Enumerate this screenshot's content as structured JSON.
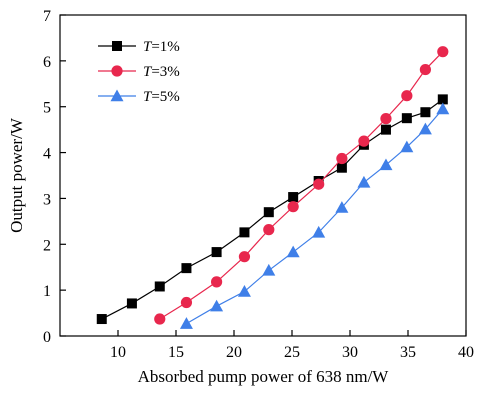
{
  "chart_data": {
    "type": "line",
    "xlabel": "Absorbed pump power of 638 nm/W",
    "ylabel": "Output power/W",
    "xlim": [
      5,
      40
    ],
    "ylim": [
      0,
      7
    ],
    "xticks": [
      10,
      15,
      20,
      25,
      30,
      35,
      40
    ],
    "yticks": [
      0,
      1,
      2,
      3,
      4,
      5,
      6,
      7
    ],
    "grid": false,
    "legend": "top-left",
    "series": [
      {
        "name": "T=1%",
        "name_italic": "T",
        "name_rest": "=1%",
        "color": "#000000",
        "marker": "square",
        "x": [
          8.6,
          11.2,
          13.6,
          15.9,
          18.5,
          20.9,
          23.0,
          25.1,
          27.3,
          29.3,
          31.2,
          33.1,
          34.9,
          36.5,
          38.0
        ],
        "y": [
          0.37,
          0.71,
          1.08,
          1.48,
          1.83,
          2.26,
          2.7,
          3.03,
          3.38,
          3.67,
          4.17,
          4.5,
          4.75,
          4.88,
          5.16
        ]
      },
      {
        "name": "T=3%",
        "name_italic": "T",
        "name_rest": "=3%",
        "color": "#e8274d",
        "marker": "circle",
        "x": [
          13.6,
          15.9,
          18.5,
          20.9,
          23.0,
          25.1,
          27.3,
          29.3,
          31.2,
          33.1,
          34.9,
          36.5,
          38.0
        ],
        "y": [
          0.37,
          0.73,
          1.18,
          1.73,
          2.32,
          2.82,
          3.31,
          3.87,
          4.25,
          4.74,
          5.24,
          5.81,
          6.2
        ]
      },
      {
        "name": "T=5%",
        "name_italic": "T",
        "name_rest": "=5%",
        "color": "#3f7fe8",
        "marker": "triangle",
        "x": [
          15.9,
          18.5,
          20.9,
          23.0,
          25.1,
          27.3,
          29.3,
          31.2,
          33.1,
          34.9,
          36.5,
          38.0
        ],
        "y": [
          0.27,
          0.65,
          0.97,
          1.43,
          1.83,
          2.26,
          2.8,
          3.35,
          3.73,
          4.12,
          4.51,
          4.95
        ]
      }
    ]
  }
}
